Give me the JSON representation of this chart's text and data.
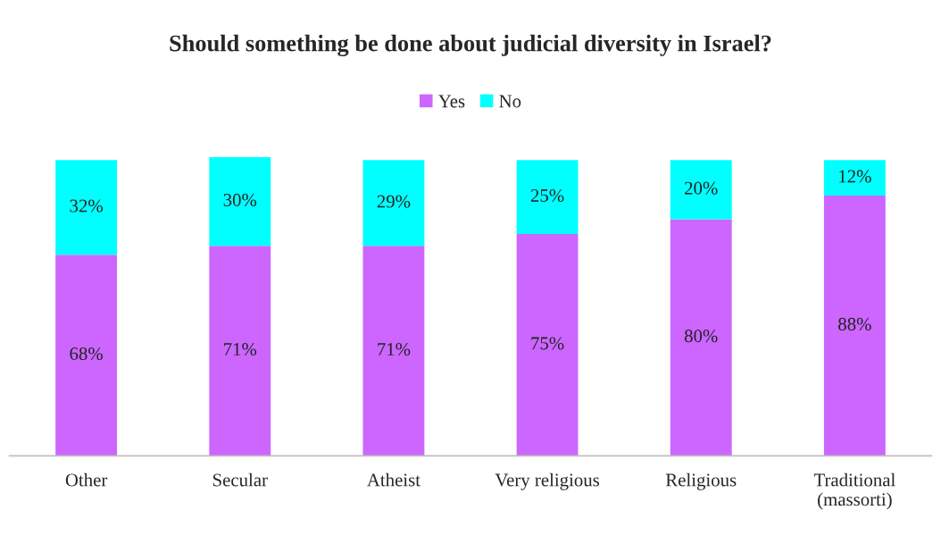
{
  "chart_data": {
    "type": "bar",
    "stacked": true,
    "title": "Should something be done about judicial diversity in Israel?",
    "categories": [
      "Other",
      "Secular",
      "Atheist",
      "Very religious",
      "Religious",
      "Traditional (massorti)"
    ],
    "series": [
      {
        "name": "Yes",
        "color": "#cc66ff",
        "values": [
          68,
          71,
          71,
          75,
          80,
          88
        ],
        "value_labels": [
          "68%",
          "71%",
          "71%",
          "75%",
          "80%",
          "88%"
        ]
      },
      {
        "name": "No",
        "color": "#00ffff",
        "values": [
          32,
          30,
          29,
          25,
          20,
          12
        ],
        "value_labels": [
          "32%",
          "30%",
          "29%",
          "25%",
          "20%",
          "12%"
        ]
      }
    ],
    "tick_labels": "x",
    "legend": "top",
    "grid": false
  }
}
